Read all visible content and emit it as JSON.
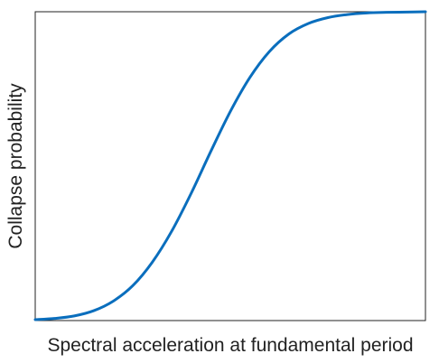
{
  "chart_data": {
    "type": "line",
    "title": "",
    "xlabel": "Spectral acceleration at fundamental period",
    "ylabel": "Collapse probability",
    "xlim": [
      0,
      1
    ],
    "ylim": [
      0,
      1
    ],
    "grid": false,
    "legend": "none",
    "ticks": "none",
    "series": [
      {
        "color": "#0a6ebd",
        "x": [
          0.0,
          0.05,
          0.1,
          0.15,
          0.2,
          0.25,
          0.3,
          0.35,
          0.4,
          0.45,
          0.5,
          0.55,
          0.6,
          0.65,
          0.7,
          0.75,
          0.8,
          0.85,
          0.9,
          0.95,
          1.0
        ],
        "y": [
          0.003,
          0.007,
          0.015,
          0.032,
          0.063,
          0.113,
          0.189,
          0.29,
          0.413,
          0.548,
          0.677,
          0.787,
          0.871,
          0.928,
          0.962,
          0.981,
          0.991,
          0.996,
          0.998,
          0.999,
          1.0
        ]
      }
    ]
  }
}
